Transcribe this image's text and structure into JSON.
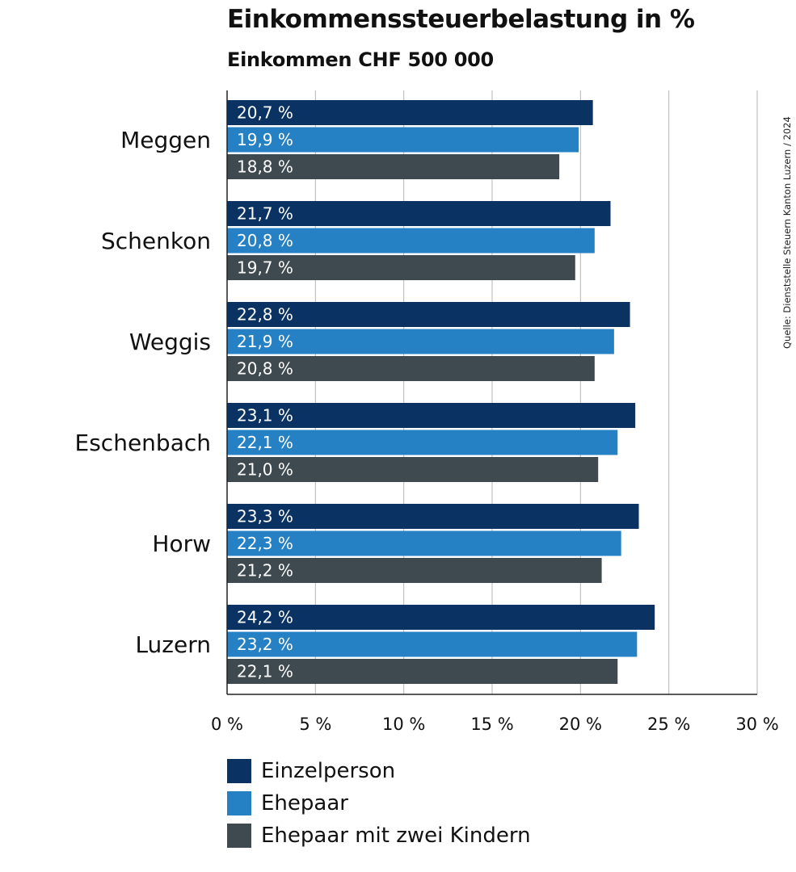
{
  "chart_data": {
    "type": "bar",
    "orientation": "horizontal",
    "title": "Einkommenssteuerbelastung in %",
    "subtitle": "Einkommen CHF 500 000",
    "source": "Quelle: Dienststelle Steuern Kanton Luzern /  2024",
    "categories": [
      "Meggen",
      "Schenkon",
      "Weggis",
      "Eschenbach",
      "Horw",
      "Luzern"
    ],
    "series": [
      {
        "name": "Einzelperson",
        "color": "#0a3364",
        "values": [
          20.7,
          21.7,
          22.8,
          23.1,
          23.3,
          24.2
        ],
        "labels": [
          "20,7 %",
          "21,7 %",
          "22,8 %",
          "23,1 %",
          "23,3 %",
          "24,2 %"
        ]
      },
      {
        "name": "Ehepaar",
        "color": "#2581c4",
        "values": [
          19.9,
          20.8,
          21.9,
          22.1,
          22.3,
          23.2
        ],
        "labels": [
          "19,9 %",
          "20,8 %",
          "21,9 %",
          "22,1 %",
          "22,3 %",
          "23,2 %"
        ]
      },
      {
        "name": "Ehepaar mit zwei Kindern",
        "color": "#3e4a50",
        "values": [
          18.8,
          19.7,
          20.8,
          21.0,
          21.2,
          22.1
        ],
        "labels": [
          "18,8 %",
          "19,7 %",
          "20,8 %",
          "21,0 %",
          "21,2 %",
          "22,1 %"
        ]
      }
    ],
    "xlim": [
      0,
      30
    ],
    "xticks": [
      0,
      5,
      10,
      15,
      20,
      25,
      30
    ],
    "xtick_labels": [
      "0 %",
      "5 %",
      "10 %",
      "15 %",
      "20 %",
      "25 %",
      "30 %"
    ],
    "grid": "vertical",
    "legend_position": "bottom-left"
  }
}
